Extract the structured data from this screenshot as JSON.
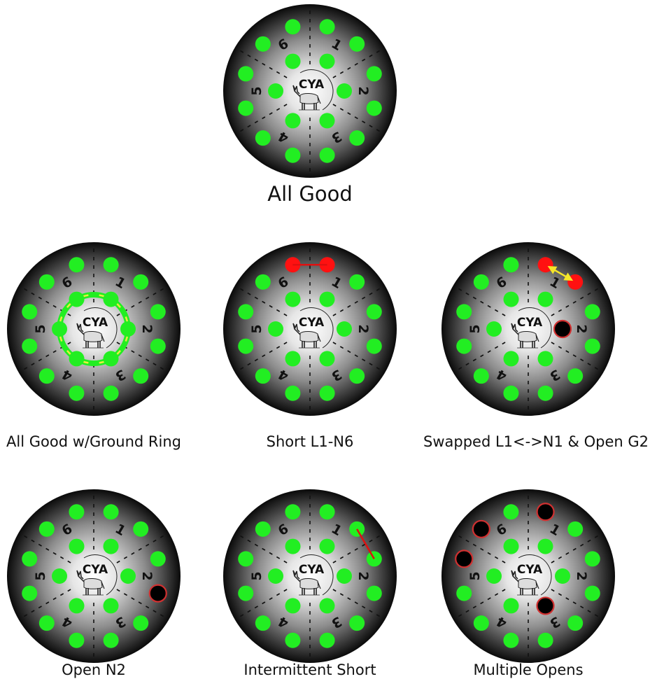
{
  "colors": {
    "pin_ok": "#22ee22",
    "pin_fault": "#ff1111",
    "open_fill": "#000000",
    "open_ring": "#d03030",
    "short_line": "#e01010",
    "swap_arrow": "#f5e629",
    "ground_ring": "#22ee22",
    "ground_dash": "#e8f040",
    "face_center": "#ffffff",
    "face_edge": "#0a0a0a"
  },
  "logo_text": "CYA",
  "sector_numbers": [
    "1",
    "2",
    "3",
    "4",
    "5",
    "6"
  ],
  "diagrams": [
    {
      "label": "All Good",
      "red": [],
      "opens": [],
      "links": [],
      "ground_ring": false
    },
    {
      "label": "All Good w/Ground Ring",
      "red": [],
      "opens": [],
      "links": [],
      "ground_ring": true
    },
    {
      "label": "Short L1-N6",
      "red": [
        "L1",
        "N6"
      ],
      "opens": [],
      "links": [
        {
          "from": "N6",
          "to": "L1",
          "style": "short"
        }
      ],
      "ground_ring": false
    },
    {
      "label": "Swapped L1<->N1 & Open G2",
      "red": [
        "L1",
        "N1"
      ],
      "opens": [
        "G2"
      ],
      "links": [
        {
          "from": "L1",
          "to": "N1",
          "style": "swap"
        }
      ],
      "ground_ring": false
    },
    {
      "label": "Open N2",
      "red": [],
      "opens": [
        "N2"
      ],
      "links": [],
      "ground_ring": false
    },
    {
      "label": "Intermittent Short",
      "red": [],
      "opens": [],
      "links": [
        {
          "from": "N1",
          "to": "L2",
          "style": "short"
        }
      ],
      "ground_ring": false
    },
    {
      "label": "Multiple Opens",
      "red": [],
      "opens": [
        "L1",
        "L6",
        "N5",
        "G3"
      ],
      "links": [],
      "ground_ring": false
    }
  ]
}
